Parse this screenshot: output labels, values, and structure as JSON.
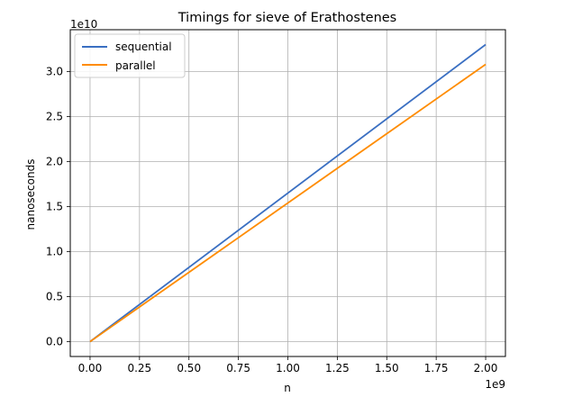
{
  "chart_data": {
    "type": "line",
    "title": "Timings for sieve of Erathostenes",
    "xlabel": "n",
    "ylabel": "nanoseconds",
    "x_offset_label": "1e9",
    "y_offset_label": "1e10",
    "xlim": [
      -0.1,
      2.1
    ],
    "ylim": [
      -0.165,
      3.465
    ],
    "x_ticks": [
      0.0,
      0.25,
      0.5,
      0.75,
      1.0,
      1.25,
      1.5,
      1.75,
      2.0
    ],
    "x_tick_labels": [
      "0.00",
      "0.25",
      "0.50",
      "0.75",
      "1.00",
      "1.25",
      "1.50",
      "1.75",
      "2.00"
    ],
    "y_ticks": [
      0.0,
      0.5,
      1.0,
      1.5,
      2.0,
      2.5,
      3.0
    ],
    "y_tick_labels": [
      "0.0",
      "0.5",
      "1.0",
      "1.5",
      "2.0",
      "2.5",
      "3.0"
    ],
    "grid": true,
    "legend_position": "top-left",
    "series": [
      {
        "name": "sequential",
        "color": "#3a6fc2",
        "x": [
          0.0,
          2.0
        ],
        "y": [
          0.0,
          3.3
        ]
      },
      {
        "name": "parallel",
        "color": "#ff8c00",
        "x": [
          0.0,
          2.0
        ],
        "y": [
          0.0,
          3.08
        ]
      }
    ]
  }
}
